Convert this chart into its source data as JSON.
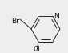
{
  "bg_color": "#eeeeee",
  "bond_color": "#222222",
  "text_color": "#111111",
  "N_label": "N",
  "Cl_label": "Cl",
  "Br_label": "Br",
  "font_size": 6.5,
  "lw": 0.7
}
